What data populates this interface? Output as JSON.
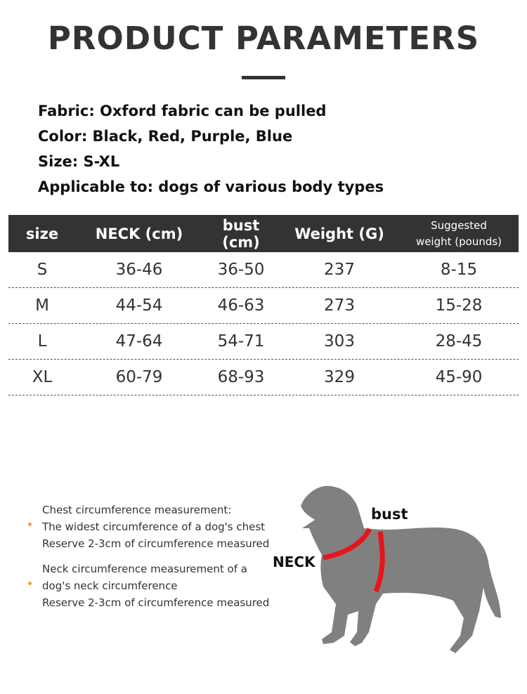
{
  "title": "PRODUCT PARAMETERS",
  "specs": [
    "Fabric: Oxford fabric can be pulled",
    "Color: Black, Red, Purple, Blue",
    "Size: S-XL",
    "Applicable to: dogs of various body types"
  ],
  "table": {
    "headers": [
      "size",
      "NECK (cm)",
      "bust (cm)",
      "Weight (G)",
      "Suggested",
      "weight (pounds)"
    ],
    "rows": [
      [
        "S",
        "36-46",
        "36-50",
        "237",
        "8-15"
      ],
      [
        "M",
        "44-54",
        "46-63",
        "273",
        "15-28"
      ],
      [
        "L",
        "47-64",
        "54-71",
        "303",
        "28-45"
      ],
      [
        "XL",
        "60-79",
        "68-93",
        "329",
        "45-90"
      ]
    ]
  },
  "notes": [
    [
      "Chest circumference measurement:",
      "The widest circumference of a dog's chest",
      "Reserve 2-3cm of circumference measured"
    ],
    [
      "Neck circumference measurement of a",
      "dog's neck circumference",
      "Reserve 2-3cm of circumference measured"
    ]
  ],
  "diagram": {
    "bust_label": "bust",
    "neck_label": "NECK",
    "dog_color": "#808080",
    "band_color": "#e8141b",
    "bullet_color": "#f0a030"
  }
}
